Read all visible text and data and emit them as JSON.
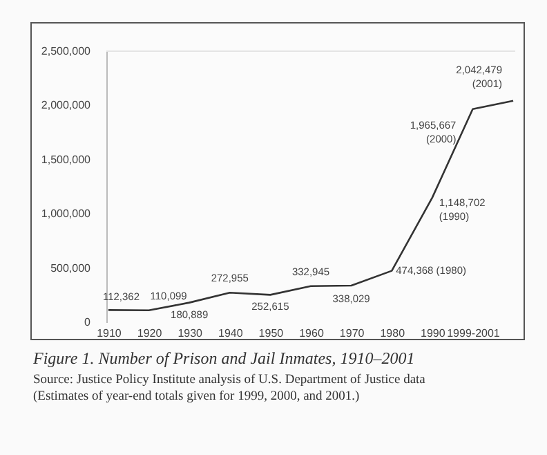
{
  "chart_data": {
    "type": "line",
    "title": "Figure 1. Number of Prison and Jail Inmates, 1910–2001",
    "annotations": [
      "Source: Justice Policy Institute analysis of U.S. Department of Justice data",
      "(Estimates of year-end totals given for 1999, 2000, and 2001.)"
    ],
    "categories": [
      "1910",
      "1920",
      "1930",
      "1940",
      "1950",
      "1960",
      "1970",
      "1980",
      "1990",
      "1999-2001",
      null
    ],
    "series": [
      {
        "color": "#333333",
        "values": [
          112362,
          110099,
          180889,
          272955,
          252615,
          332945,
          338029,
          474368,
          1148702,
          1965667,
          2042479
        ],
        "value_labels": [
          "112,362",
          "110,099",
          "180,889",
          "272,955",
          "252,615",
          "332,945",
          "338,029",
          "474,368 (1980)",
          "1,148,702 (1990)",
          "1,965,667 (2000)",
          "2,042,479 (2001)"
        ]
      }
    ],
    "ylim": [
      0,
      2500000
    ],
    "yticks": [
      0,
      {
        "value": 500000,
        "label": "500,000"
      },
      {
        "value": 1000000,
        "label": "1,000,000"
      },
      {
        "value": 1500000,
        "label": "1,500,000"
      },
      {
        "value": 2000000,
        "label": "2,000,000"
      },
      {
        "value": 2500000,
        "label": "2,500,000"
      }
    ],
    "grid": false,
    "marker": "none",
    "line_style": "solid"
  }
}
